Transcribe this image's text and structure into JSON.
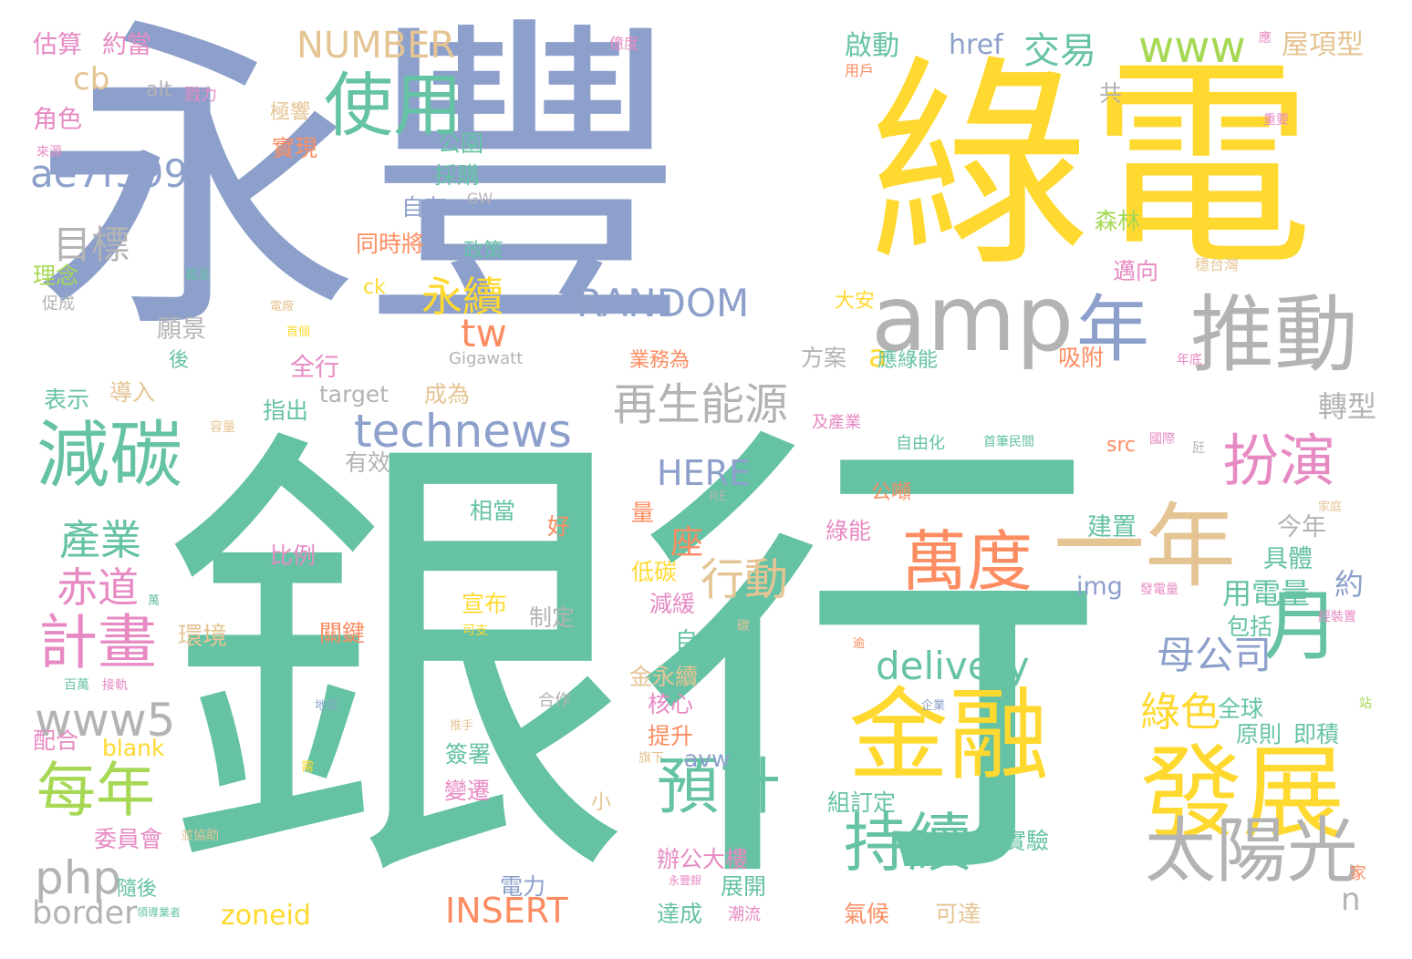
{
  "words": [
    {
      "text": "銀行",
      "color": "#66c2a5"
    },
    {
      "text": "永豐",
      "color": "#8da0cb"
    },
    {
      "text": "綠電",
      "color": "#ffd92f"
    },
    {
      "text": "amp",
      "color": "#b3b3b3"
    },
    {
      "text": "推動",
      "color": "#b3b3b3"
    },
    {
      "text": "年",
      "color": "#8da0cb"
    },
    {
      "text": "使用",
      "color": "#66c2a5"
    },
    {
      "text": "減碳",
      "color": "#66c2a5"
    },
    {
      "text": "一年",
      "color": "#e5c494"
    },
    {
      "text": "金融",
      "color": "#ffd92f"
    },
    {
      "text": "發展",
      "color": "#ffd92f"
    },
    {
      "text": "萬度",
      "color": "#fc8d62"
    },
    {
      "text": "扮演",
      "color": "#e78ac3"
    },
    {
      "text": "太陽光",
      "color": "#b3b3b3"
    },
    {
      "text": "持續",
      "color": "#66c2a5"
    },
    {
      "text": "預計",
      "color": "#66c2a5"
    },
    {
      "text": "每年",
      "color": "#a6d854"
    },
    {
      "text": "計畫",
      "color": "#e78ac3"
    },
    {
      "text": "再生能源",
      "color": "#b3b3b3"
    },
    {
      "text": "technews",
      "color": "#8da0cb"
    },
    {
      "text": "行動",
      "color": "#e5c494"
    },
    {
      "text": "月",
      "color": "#66c2a5"
    },
    {
      "text": "ae7f5990",
      "color": "#8da0cb"
    },
    {
      "text": "RANDOM",
      "color": "#8da0cb"
    },
    {
      "text": "NUMBER",
      "color": "#e5c494"
    },
    {
      "text": "www",
      "color": "#a6d854"
    },
    {
      "text": "交易",
      "color": "#66c2a5"
    },
    {
      "text": "HERE",
      "color": "#8da0cb"
    },
    {
      "text": "delivery",
      "color": "#66c2a5"
    },
    {
      "text": "母公司",
      "color": "#8da0cb"
    },
    {
      "text": "www5",
      "color": "#b3b3b3"
    },
    {
      "text": "產業",
      "color": "#66c2a5"
    },
    {
      "text": "赤道",
      "color": "#e78ac3"
    },
    {
      "text": "目標",
      "color": "#b3b3b3"
    },
    {
      "text": "永續",
      "color": "#ffd92f"
    },
    {
      "text": "php",
      "color": "#b3b3b3"
    },
    {
      "text": "INSERT",
      "color": "#fc8d62"
    },
    {
      "text": "border",
      "color": "#b3b3b3"
    },
    {
      "text": "zoneid",
      "color": "#ffd92f"
    },
    {
      "text": "綠色",
      "color": "#ffd92f"
    },
    {
      "text": "tw",
      "color": "#fc8d62"
    },
    {
      "text": "座",
      "color": "#fc8d62"
    },
    {
      "text": "n",
      "color": "#b3b3b3"
    },
    {
      "text": "a",
      "color": "#ffd92f"
    },
    {
      "text": "cb",
      "color": "#e5c494"
    },
    {
      "text": "用電量",
      "color": "#66c2a5"
    },
    {
      "text": "約",
      "color": "#8da0cb"
    },
    {
      "text": "轉型",
      "color": "#b3b3b3"
    },
    {
      "text": "屋項型",
      "color": "#e5c494"
    },
    {
      "text": "href",
      "color": "#8da0cb"
    },
    {
      "text": "啟動",
      "color": "#66c2a5"
    },
    {
      "text": "估算",
      "color": "#e78ac3"
    },
    {
      "text": "約當",
      "color": "#e78ac3"
    },
    {
      "text": "角色",
      "color": "#e78ac3"
    },
    {
      "text": "理念",
      "color": "#a6d854"
    },
    {
      "text": "願景",
      "color": "#b3b3b3"
    },
    {
      "text": "表示",
      "color": "#66c2a5"
    },
    {
      "text": "導入",
      "color": "#e5c494"
    },
    {
      "text": "指出",
      "color": "#66c2a5"
    },
    {
      "text": "target",
      "color": "#b3b3b3"
    },
    {
      "text": "成為",
      "color": "#e5c494"
    },
    {
      "text": "全行",
      "color": "#e78ac3"
    },
    {
      "text": "有效",
      "color": "#b3b3b3"
    },
    {
      "text": "實現",
      "color": "#fc8d62"
    },
    {
      "text": "公園",
      "color": "#66c2a5"
    },
    {
      "text": "採購",
      "color": "#66c2a5"
    },
    {
      "text": "自有",
      "color": "#8da0cb"
    },
    {
      "text": "同時將",
      "color": "#fc8d62"
    },
    {
      "text": "政策",
      "color": "#66c2a5"
    },
    {
      "text": "ck",
      "color": "#ffd92f"
    },
    {
      "text": "極響",
      "color": "#e5c494"
    },
    {
      "text": "alt",
      "color": "#b3b3b3"
    },
    {
      "text": "戮力",
      "color": "#e78ac3"
    },
    {
      "text": "GW",
      "color": "#b3b3b3"
    },
    {
      "text": "Gigawatt",
      "color": "#b3b3b3"
    },
    {
      "text": "業務為",
      "color": "#fc8d62"
    },
    {
      "text": "方案",
      "color": "#b3b3b3"
    },
    {
      "text": "應綠能",
      "color": "#66c2a5"
    },
    {
      "text": "吸附",
      "color": "#fc8d62"
    },
    {
      "text": "大安",
      "color": "#ffd92f"
    },
    {
      "text": "邁向",
      "color": "#e78ac3"
    },
    {
      "text": "森林",
      "color": "#a6d854"
    },
    {
      "text": "穩台灣",
      "color": "#e5c494"
    },
    {
      "text": "年底",
      "color": "#e78ac3"
    },
    {
      "text": "共",
      "color": "#b3b3b3"
    },
    {
      "text": "用戶",
      "color": "#fc8d62"
    },
    {
      "text": "億度",
      "color": "#e78ac3"
    },
    {
      "text": "應",
      "color": "#e78ac3"
    },
    {
      "text": "重要",
      "color": "#e78ac3"
    },
    {
      "text": "來源",
      "color": "#e78ac3"
    },
    {
      "text": "截至",
      "color": "#66c2a5"
    },
    {
      "text": "促成",
      "color": "#b3b3b3"
    },
    {
      "text": "電廠",
      "color": "#e5c494"
    },
    {
      "text": "首個",
      "color": "#ffd92f"
    },
    {
      "text": "後",
      "color": "#66c2a5"
    },
    {
      "text": "容量",
      "color": "#e5c494"
    },
    {
      "text": "及產業",
      "color": "#e78ac3"
    },
    {
      "text": "自由化",
      "color": "#66c2a5"
    },
    {
      "text": "首筆民間",
      "color": "#66c2a5"
    },
    {
      "text": "國際",
      "color": "#e78ac3"
    },
    {
      "text": "瓩",
      "color": "#b3b3b3"
    },
    {
      "text": "src",
      "color": "#fc8d62"
    },
    {
      "text": "公噸",
      "color": "#fc8d62"
    },
    {
      "text": "RE",
      "color": "#b3b3b3"
    },
    {
      "text": "家庭",
      "color": "#e5c494"
    },
    {
      "text": "今年",
      "color": "#b3b3b3"
    },
    {
      "text": "建置",
      "color": "#66c2a5"
    },
    {
      "text": "具體",
      "color": "#66c2a5"
    },
    {
      "text": "相當",
      "color": "#66c2a5"
    },
    {
      "text": "好",
      "color": "#fc8d62"
    },
    {
      "text": "量",
      "color": "#fc8d62"
    },
    {
      "text": "綠能",
      "color": "#e78ac3"
    },
    {
      "text": "比例",
      "color": "#e78ac3"
    },
    {
      "text": "低碳",
      "color": "#ffd92f"
    },
    {
      "text": "減緩",
      "color": "#e78ac3"
    },
    {
      "text": "碳",
      "color": "#e5c494"
    },
    {
      "text": "img",
      "color": "#8da0cb"
    },
    {
      "text": "發電量",
      "color": "#e78ac3"
    },
    {
      "text": "包括",
      "color": "#66c2a5"
    },
    {
      "text": "經裝置",
      "color": "#e78ac3"
    },
    {
      "text": "宣布",
      "color": "#ffd92f"
    },
    {
      "text": "制定",
      "color": "#b3b3b3"
    },
    {
      "text": "可支",
      "color": "#ffd92f"
    },
    {
      "text": "關鍵",
      "color": "#fc8d62"
    },
    {
      "text": "環境",
      "color": "#e5c494"
    },
    {
      "text": "萬",
      "color": "#66c2a5"
    },
    {
      "text": "自主",
      "color": "#66c2a5"
    },
    {
      "text": "逾",
      "color": "#fc8d62"
    },
    {
      "text": "金永續",
      "color": "#e5c494"
    },
    {
      "text": "百萬",
      "color": "#66c2a5"
    },
    {
      "text": "接軌",
      "color": "#e78ac3"
    },
    {
      "text": "合作",
      "color": "#b3b3b3"
    },
    {
      "text": "核心",
      "color": "#e78ac3"
    },
    {
      "text": "地位",
      "color": "#8da0cb"
    },
    {
      "text": "企業",
      "color": "#8da0cb"
    },
    {
      "text": "全球",
      "color": "#66c2a5"
    },
    {
      "text": "站",
      "color": "#a6d854"
    },
    {
      "text": "配合",
      "color": "#e78ac3"
    },
    {
      "text": "blank",
      "color": "#ffd92f"
    },
    {
      "text": "提升",
      "color": "#fc8d62"
    },
    {
      "text": "avw",
      "color": "#8da0cb"
    },
    {
      "text": "推手",
      "color": "#e5c494"
    },
    {
      "text": "原則",
      "color": "#66c2a5"
    },
    {
      "text": "即積",
      "color": "#66c2a5"
    },
    {
      "text": "簽署",
      "color": "#66c2a5"
    },
    {
      "text": "旗下",
      "color": "#e5c494"
    },
    {
      "text": "需",
      "color": "#ffd92f"
    },
    {
      "text": "變遷",
      "color": "#e78ac3"
    },
    {
      "text": "小",
      "color": "#e5c494"
    },
    {
      "text": "組訂定",
      "color": "#66c2a5"
    },
    {
      "text": "委員會",
      "color": "#e78ac3"
    },
    {
      "text": "並協助",
      "color": "#e5c494"
    },
    {
      "text": "電實驗",
      "color": "#66c2a5"
    },
    {
      "text": "辦公大樓",
      "color": "#e78ac3"
    },
    {
      "text": "電力",
      "color": "#8da0cb"
    },
    {
      "text": "展開",
      "color": "#66c2a5"
    },
    {
      "text": "隨後",
      "color": "#66c2a5"
    },
    {
      "text": "永豐銀",
      "color": "#e78ac3"
    },
    {
      "text": "家",
      "color": "#fc8d62"
    },
    {
      "text": "領導業者",
      "color": "#66c2a5"
    },
    {
      "text": "達成",
      "color": "#66c2a5"
    },
    {
      "text": "潮流",
      "color": "#e78ac3"
    },
    {
      "text": "氣候",
      "color": "#fc8d62"
    },
    {
      "text": "可達",
      "color": "#e5c494"
    }
  ]
}
